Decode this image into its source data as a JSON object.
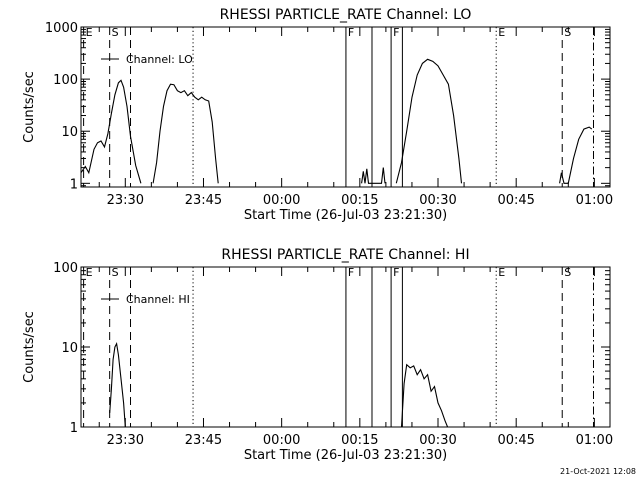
{
  "footer": {
    "date": "21-Oct-2021 12:08"
  },
  "chart_data": [
    {
      "type": "line",
      "title": "RHESSI PARTICLE_RATE Channel: LO",
      "xlabel": "Start Time (26-Jul-03 23:21:30)",
      "ylabel": "Counts/sec",
      "legend": "Channel: LO",
      "ylog": true,
      "xlim": [
        "23:21:30",
        "01:03:00"
      ],
      "ylim": [
        0.85,
        1000
      ],
      "xticks": [
        "23:30",
        "23:45",
        "00:00",
        "00:15",
        "00:30",
        "00:45",
        "01:00"
      ],
      "yticks": [
        "1",
        "10",
        "100",
        "1000"
      ],
      "markers": [
        {
          "label": "E",
          "time": "23:22:00",
          "style": "dashed"
        },
        {
          "label": "S",
          "time": "23:27:00",
          "style": "dashed"
        },
        {
          "label": "",
          "time": "23:31:00",
          "style": "dashed"
        },
        {
          "label": "",
          "time": "23:43:00",
          "style": "dotted"
        },
        {
          "label": "F",
          "time": "00:12:20",
          "style": "solid"
        },
        {
          "label": "",
          "time": "00:17:20",
          "style": "solid"
        },
        {
          "label": "F",
          "time": "00:21:00",
          "style": "solid"
        },
        {
          "label": "",
          "time": "00:23:10",
          "style": "solid"
        },
        {
          "label": "E",
          "time": "00:41:10",
          "style": "dotted"
        },
        {
          "label": "S",
          "time": "00:53:50",
          "style": "dashed"
        },
        {
          "label": "",
          "time": "00:59:50",
          "style": "dashdot"
        }
      ],
      "series": [
        {
          "name": "Channel: LO",
          "points": [
            [
              "23:21:30",
              1.6
            ],
            [
              "23:22:20",
              2.1
            ],
            [
              "23:23:00",
              1.6
            ],
            [
              "23:24:00",
              4.5
            ],
            [
              "23:24:40",
              6.0
            ],
            [
              "23:25:20",
              6.5
            ],
            [
              "23:26:00",
              5.0
            ],
            [
              "23:26:40",
              9.0
            ],
            [
              "23:27:20",
              22
            ],
            [
              "23:28:00",
              50
            ],
            [
              "23:28:40",
              85
            ],
            [
              "23:29:10",
              95
            ],
            [
              "23:29:40",
              70
            ],
            [
              "23:30:20",
              30
            ],
            [
              "23:31:00",
              8
            ],
            [
              "23:32:00",
              2.2
            ],
            [
              "23:33:00",
              1.0
            ]
          ]
        },
        {
          "name": "Channel: LO",
          "points": [
            [
              "23:35:20",
              1.0
            ],
            [
              "23:36:00",
              2.5
            ],
            [
              "23:36:40",
              10
            ],
            [
              "23:37:20",
              30
            ],
            [
              "23:38:00",
              60
            ],
            [
              "23:38:40",
              80
            ],
            [
              "23:39:20",
              78
            ],
            [
              "23:40:00",
              60
            ],
            [
              "23:40:40",
              55
            ],
            [
              "23:41:20",
              60
            ],
            [
              "23:42:00",
              48
            ],
            [
              "23:42:40",
              55
            ],
            [
              "23:43:20",
              45
            ],
            [
              "23:44:00",
              40
            ],
            [
              "23:44:40",
              45
            ],
            [
              "23:45:20",
              40
            ],
            [
              "23:46:00",
              38
            ],
            [
              "23:46:40",
              15
            ],
            [
              "23:47:20",
              3
            ],
            [
              "23:47:50",
              1.0
            ]
          ]
        },
        {
          "name": "Channel: LO",
          "points": [
            [
              "00:15:20",
              1.0
            ],
            [
              "00:15:40",
              1.7
            ],
            [
              "00:16:00",
              1.0
            ],
            [
              "00:16:20",
              1.9
            ],
            [
              "00:16:40",
              1.0
            ],
            [
              "00:19:10",
              1.0
            ],
            [
              "00:19:30",
              2.0
            ],
            [
              "00:19:50",
              1.0
            ]
          ]
        },
        {
          "name": "Channel: LO",
          "points": [
            [
              "00:22:00",
              1.0
            ],
            [
              "00:23:00",
              2.5
            ],
            [
              "00:24:00",
              10
            ],
            [
              "00:25:00",
              45
            ],
            [
              "00:26:00",
              120
            ],
            [
              "00:27:00",
              200
            ],
            [
              "00:28:00",
              240
            ],
            [
              "00:29:00",
              220
            ],
            [
              "00:30:00",
              180
            ],
            [
              "00:31:00",
              120
            ],
            [
              "00:32:00",
              80
            ],
            [
              "00:33:00",
              20
            ],
            [
              "00:34:00",
              3
            ],
            [
              "00:34:30",
              1.0
            ]
          ]
        },
        {
          "name": "Channel: LO",
          "points": [
            [
              "00:53:20",
              1.0
            ],
            [
              "00:53:40",
              1.6
            ],
            [
              "00:54:10",
              1.0
            ],
            [
              "00:55:00",
              1.0
            ],
            [
              "00:56:00",
              3
            ],
            [
              "00:57:00",
              7
            ],
            [
              "00:58:00",
              11
            ],
            [
              "00:59:00",
              12
            ],
            [
              "00:59:30",
              11
            ]
          ]
        }
      ]
    },
    {
      "type": "line",
      "title": "RHESSI PARTICLE_RATE Channel: HI",
      "xlabel": "Start Time (26-Jul-03 23:21:30)",
      "ylabel": "Counts/sec",
      "legend": "Channel: HI",
      "ylog": true,
      "xlim": [
        "23:21:30",
        "01:03:00"
      ],
      "ylim": [
        1,
        100
      ],
      "xticks": [
        "23:30",
        "23:45",
        "00:00",
        "00:15",
        "00:30",
        "00:45",
        "01:00"
      ],
      "yticks": [
        "1",
        "10",
        "100"
      ],
      "markers": [
        {
          "label": "E",
          "time": "23:22:00",
          "style": "dashed"
        },
        {
          "label": "S",
          "time": "23:27:00",
          "style": "dashed"
        },
        {
          "label": "",
          "time": "23:31:00",
          "style": "dashed"
        },
        {
          "label": "",
          "time": "23:43:00",
          "style": "dotted"
        },
        {
          "label": "F",
          "time": "00:12:20",
          "style": "solid"
        },
        {
          "label": "",
          "time": "00:17:20",
          "style": "solid"
        },
        {
          "label": "F",
          "time": "00:21:00",
          "style": "solid"
        },
        {
          "label": "",
          "time": "00:23:10",
          "style": "solid"
        },
        {
          "label": "E",
          "time": "00:41:10",
          "style": "dotted"
        },
        {
          "label": "S",
          "time": "00:53:50",
          "style": "dashed"
        },
        {
          "label": "",
          "time": "00:59:50",
          "style": "dashdot"
        }
      ],
      "series": [
        {
          "name": "Channel: HI",
          "points": [
            [
              "23:27:00",
              1.5
            ],
            [
              "23:27:20",
              3
            ],
            [
              "23:27:40",
              7
            ],
            [
              "23:28:00",
              10
            ],
            [
              "23:28:20",
              11
            ],
            [
              "23:28:40",
              8
            ],
            [
              "23:29:10",
              4
            ],
            [
              "23:29:40",
              2
            ],
            [
              "23:30:00",
              1.0
            ]
          ]
        },
        {
          "name": "Channel: HI",
          "points": [
            [
              "00:23:00",
              1.0
            ],
            [
              "00:23:30",
              3.5
            ],
            [
              "00:24:00",
              6.0
            ],
            [
              "00:24:40",
              5.5
            ],
            [
              "00:25:20",
              5.8
            ],
            [
              "00:26:00",
              4.5
            ],
            [
              "00:26:40",
              5.2
            ],
            [
              "00:27:20",
              4.0
            ],
            [
              "00:28:00",
              4.5
            ],
            [
              "00:28:40",
              2.8
            ],
            [
              "00:29:20",
              3.2
            ],
            [
              "00:30:00",
              2.0
            ],
            [
              "00:30:40",
              1.6
            ],
            [
              "00:31:20",
              1.2
            ],
            [
              "00:31:50",
              1.0
            ]
          ]
        }
      ]
    }
  ]
}
